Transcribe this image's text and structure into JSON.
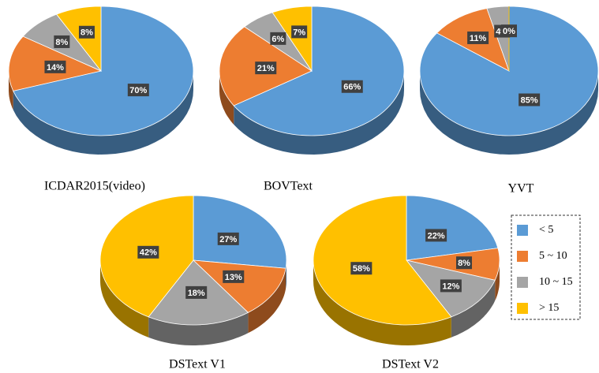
{
  "chart_data": [
    {
      "type": "pie",
      "title": "ICDAR2015(video)",
      "categories": [
        "< 5",
        "5 ~ 10",
        "10 ~ 15",
        "> 15"
      ],
      "values": [
        70,
        14,
        8,
        8
      ],
      "value_labels": [
        "70%",
        "14%",
        "8%",
        "8%"
      ],
      "colors": [
        "#5b9bd5",
        "#ed7d31",
        "#a5a5a5",
        "#ffc000"
      ]
    },
    {
      "type": "pie",
      "title": "BOVText",
      "categories": [
        "< 5",
        "5 ~ 10",
        "10 ~ 15",
        "> 15"
      ],
      "values": [
        66,
        21,
        6,
        7
      ],
      "value_labels": [
        "66%",
        "21%",
        "6%",
        "7%"
      ],
      "colors": [
        "#5b9bd5",
        "#ed7d31",
        "#a5a5a5",
        "#ffc000"
      ]
    },
    {
      "type": "pie",
      "title": "YVT",
      "categories": [
        "< 5",
        "5 ~ 10",
        "10 ~ 15",
        "> 15"
      ],
      "values": [
        85,
        11,
        4,
        0
      ],
      "value_labels": [
        "85%",
        "11%",
        "4%",
        "0%"
      ],
      "colors": [
        "#5b9bd5",
        "#ed7d31",
        "#a5a5a5",
        "#ffc000"
      ]
    },
    {
      "type": "pie",
      "title": "DSText V1",
      "categories": [
        "< 5",
        "5 ~ 10",
        "10 ~ 15",
        "> 15"
      ],
      "values": [
        27,
        13,
        18,
        42
      ],
      "value_labels": [
        "27%",
        "13%",
        "18%",
        "42%"
      ],
      "colors": [
        "#5b9bd5",
        "#ed7d31",
        "#a5a5a5",
        "#ffc000"
      ]
    },
    {
      "type": "pie",
      "title": "DSText V2",
      "categories": [
        "< 5",
        "5 ~ 10",
        "10 ~ 15",
        "> 15"
      ],
      "values": [
        22,
        8,
        12,
        58
      ],
      "value_labels": [
        "22%",
        "8%",
        "12%",
        "58%"
      ],
      "colors": [
        "#5b9bd5",
        "#ed7d31",
        "#a5a5a5",
        "#ffc000"
      ]
    }
  ]
}
